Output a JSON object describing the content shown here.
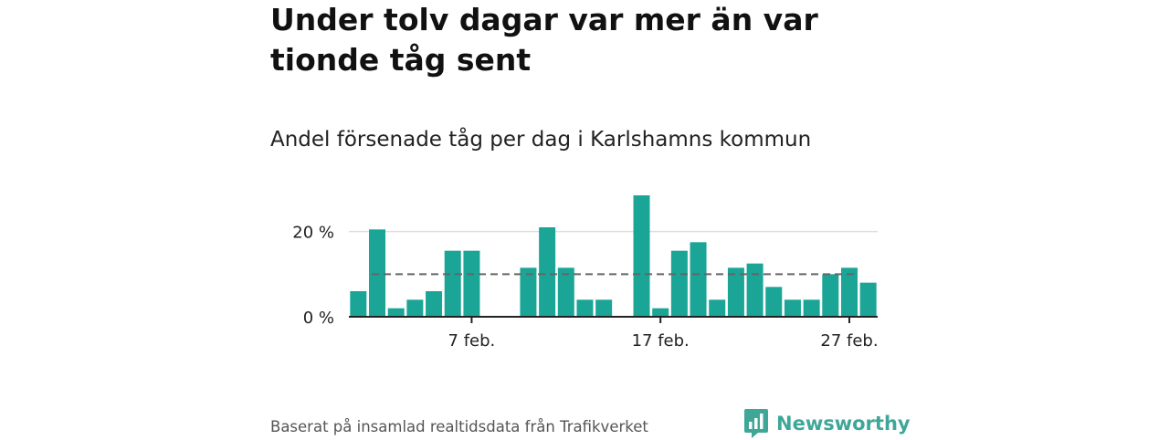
{
  "headline": "Under tolv dagar var mer än var tionde tåg sent",
  "subtitle": "Andel försenade tåg per dag i Karlshamns kommun",
  "source": "Baserat på insamlad realtidsdata från Trafikverket",
  "brand": {
    "name": "Newsworthy",
    "logo_icon": "newsworthy-logo-icon"
  },
  "colors": {
    "bar": "#1aa596",
    "reference_line": "#666666",
    "grid": "#dddddd",
    "axis": "#222222"
  },
  "chart_data": {
    "type": "bar",
    "x": [
      1,
      2,
      3,
      4,
      5,
      6,
      7,
      8,
      9,
      10,
      11,
      12,
      13,
      14,
      15,
      16,
      17,
      18,
      19,
      20,
      21,
      22,
      23,
      24,
      25,
      26,
      27,
      28
    ],
    "values": [
      6,
      20.5,
      2,
      4,
      6,
      15.5,
      15.5,
      0,
      0,
      11.5,
      21,
      11.5,
      4,
      4,
      0,
      28.5,
      2,
      15.5,
      17.5,
      4,
      11.5,
      12.5,
      7,
      4,
      4,
      10,
      11.5,
      8
    ],
    "reference_line": 10,
    "x_ticks": [
      {
        "x": 7,
        "label": "7 feb."
      },
      {
        "x": 17,
        "label": "17 feb."
      },
      {
        "x": 27,
        "label": "27 feb."
      }
    ],
    "y_ticks": [
      {
        "value": 0,
        "label": "0 %"
      },
      {
        "value": 20,
        "label": "20 %"
      }
    ],
    "ylim": [
      0,
      30
    ],
    "grid": true
  }
}
